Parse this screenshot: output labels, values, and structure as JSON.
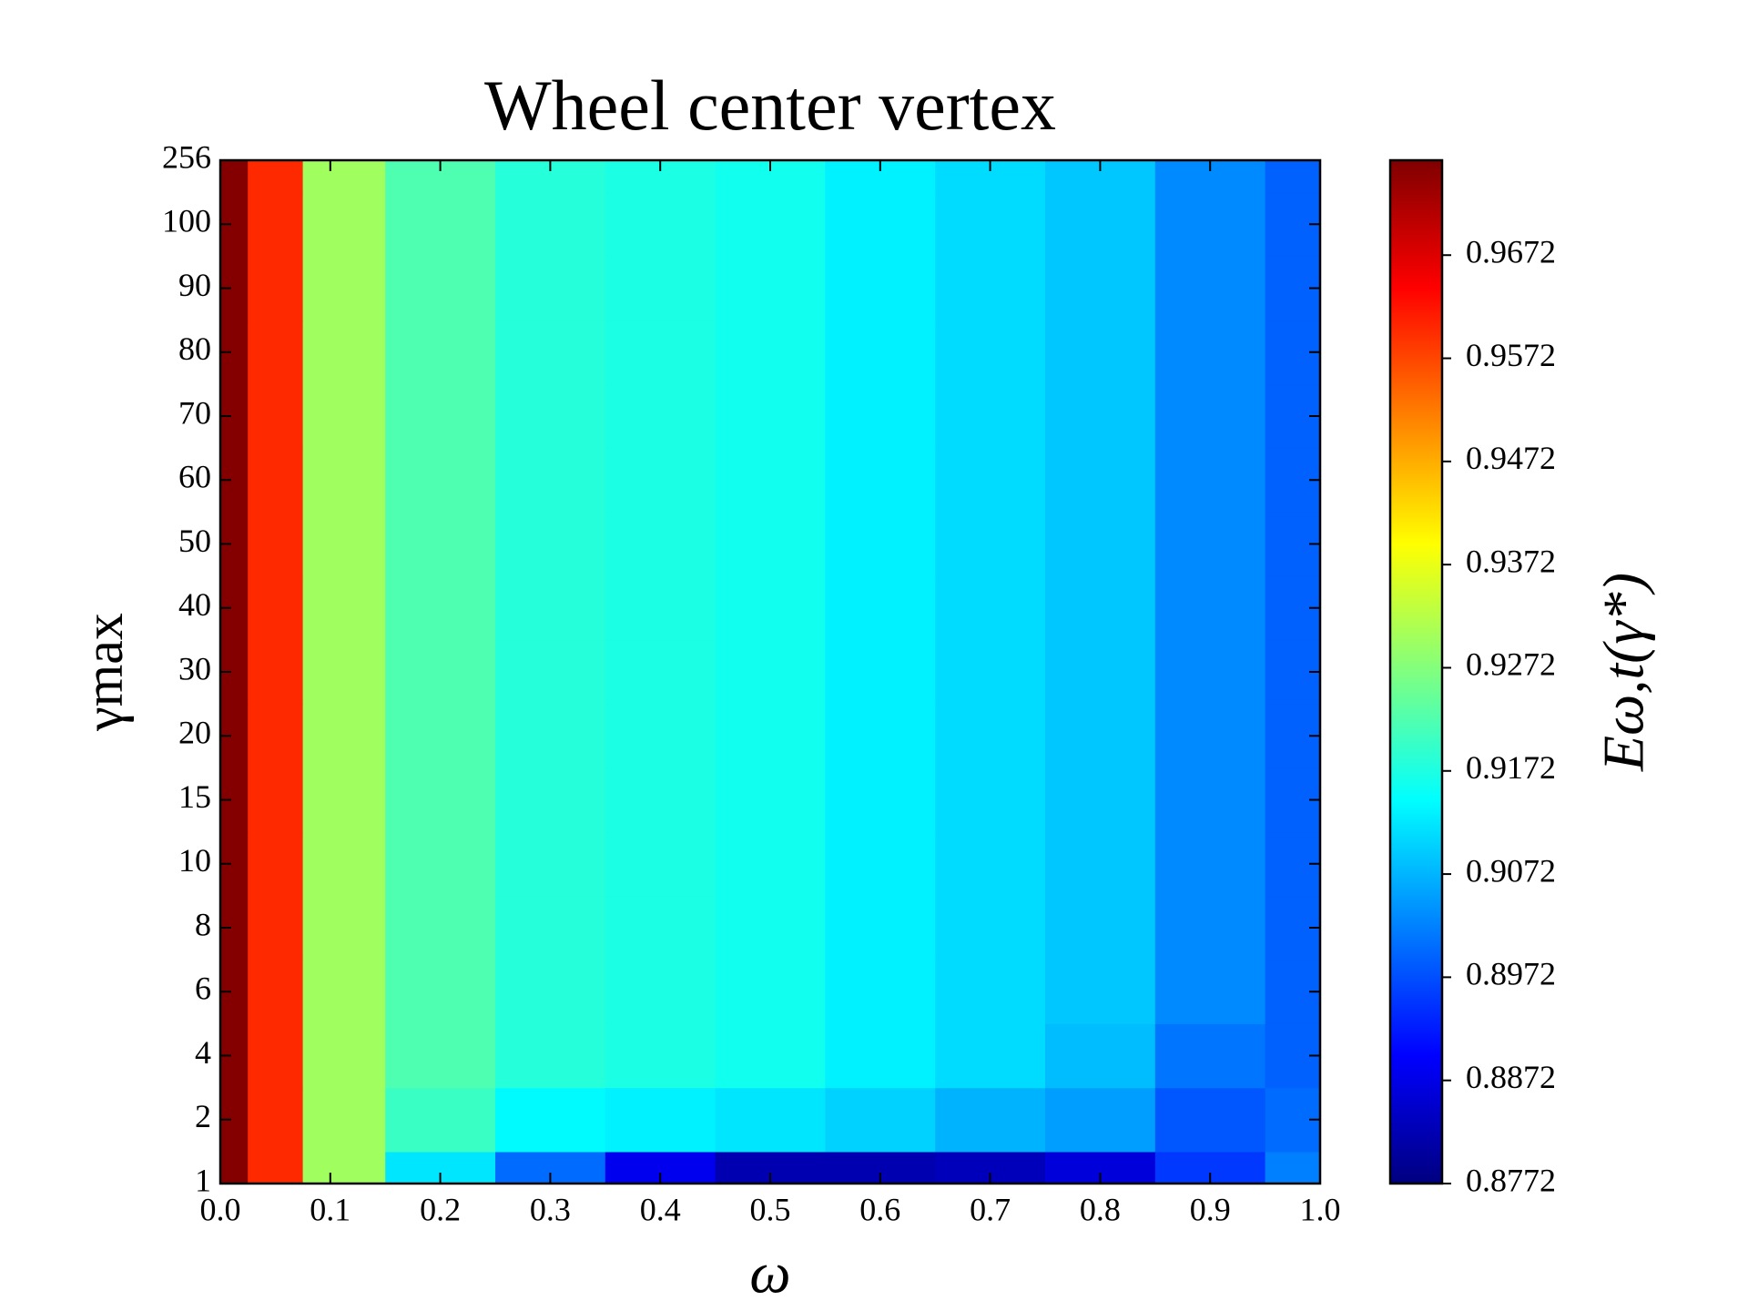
{
  "chart_data": {
    "type": "heatmap",
    "title": "Wheel center vertex",
    "x_label": "ω",
    "y_label": "γmax",
    "x": [
      0,
      0.05,
      0.1,
      0.2,
      0.3,
      0.4,
      0.5,
      0.6,
      0.7,
      0.8,
      0.9,
      1.0
    ],
    "xlim": [
      0,
      1
    ],
    "xticks": [
      {
        "value": 0,
        "label": "0.0"
      },
      0.1,
      0.2,
      0.3,
      0.4,
      0.5,
      0.6,
      0.7,
      0.8,
      0.9,
      {
        "value": 1,
        "label": "1.0"
      }
    ],
    "categories": [
      "1",
      "2",
      "4",
      "6",
      "8",
      "10",
      "15",
      "20",
      "30",
      "40",
      "50",
      "60",
      "70",
      "80",
      "90",
      "100",
      "256"
    ],
    "values": [
      [
        0.976,
        0.96,
        0.93,
        0.912,
        0.9,
        0.888,
        0.882,
        0.882,
        0.883,
        0.886,
        0.895,
        0.902
      ],
      [
        0.976,
        0.96,
        0.93,
        0.92,
        0.914,
        0.913,
        0.912,
        0.91,
        0.907,
        0.905,
        0.898,
        0.9
      ],
      [
        0.976,
        0.96,
        0.93,
        0.922,
        0.918,
        0.917,
        0.916,
        0.913,
        0.911,
        0.908,
        0.901,
        0.899
      ],
      [
        0.976,
        0.96,
        0.93,
        0.922,
        0.918,
        0.917,
        0.916,
        0.913,
        0.911,
        0.909,
        0.903,
        0.899
      ],
      [
        0.976,
        0.96,
        0.93,
        0.922,
        0.918,
        0.917,
        0.916,
        0.913,
        0.911,
        0.909,
        0.903,
        0.899
      ],
      [
        0.976,
        0.96,
        0.93,
        0.922,
        0.918,
        0.917,
        0.916,
        0.913,
        0.911,
        0.909,
        0.903,
        0.899
      ],
      [
        0.976,
        0.96,
        0.93,
        0.922,
        0.918,
        0.917,
        0.916,
        0.913,
        0.911,
        0.909,
        0.903,
        0.899
      ],
      [
        0.976,
        0.96,
        0.93,
        0.922,
        0.918,
        0.917,
        0.916,
        0.913,
        0.911,
        0.909,
        0.903,
        0.899
      ],
      [
        0.976,
        0.96,
        0.93,
        0.922,
        0.918,
        0.917,
        0.916,
        0.913,
        0.911,
        0.909,
        0.903,
        0.899
      ],
      [
        0.976,
        0.96,
        0.93,
        0.922,
        0.918,
        0.917,
        0.916,
        0.913,
        0.911,
        0.909,
        0.903,
        0.899
      ],
      [
        0.976,
        0.96,
        0.93,
        0.922,
        0.918,
        0.917,
        0.916,
        0.913,
        0.911,
        0.909,
        0.903,
        0.899
      ],
      [
        0.976,
        0.96,
        0.93,
        0.922,
        0.918,
        0.917,
        0.916,
        0.913,
        0.911,
        0.909,
        0.903,
        0.899
      ],
      [
        0.976,
        0.96,
        0.93,
        0.922,
        0.918,
        0.917,
        0.916,
        0.913,
        0.911,
        0.909,
        0.903,
        0.899
      ],
      [
        0.976,
        0.96,
        0.93,
        0.922,
        0.918,
        0.917,
        0.916,
        0.913,
        0.911,
        0.909,
        0.903,
        0.899
      ],
      [
        0.976,
        0.96,
        0.93,
        0.922,
        0.918,
        0.917,
        0.916,
        0.913,
        0.911,
        0.909,
        0.903,
        0.899
      ],
      [
        0.976,
        0.96,
        0.93,
        0.922,
        0.918,
        0.917,
        0.916,
        0.913,
        0.911,
        0.909,
        0.903,
        0.899
      ],
      [
        0.976,
        0.96,
        0.93,
        0.922,
        0.918,
        0.917,
        0.916,
        0.913,
        0.911,
        0.909,
        0.903,
        0.899
      ]
    ],
    "colorbar": {
      "label": "Eω,t(γ*)",
      "colormap": "jet",
      "clim": [
        0.8772,
        0.9764
      ],
      "ticks": [
        0.8772,
        0.8872,
        0.8972,
        0.9072,
        0.9172,
        0.9272,
        0.9372,
        0.9472,
        0.9572,
        0.9672
      ]
    }
  }
}
